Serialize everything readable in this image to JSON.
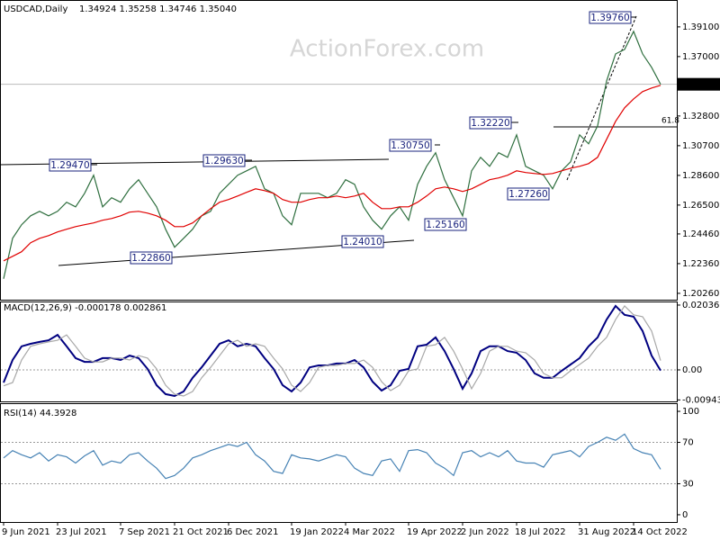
{
  "chart_data": [
    {
      "type": "line",
      "title": "USDCAD,Daily",
      "ohlc": "1.34924 1.35258 1.34746 1.35040",
      "watermark": "ActionForex.com",
      "categories": [
        "9 Jun 2021",
        null,
        null,
        null,
        null,
        null,
        "23 Jul 2021",
        null,
        null,
        null,
        null,
        null,
        null,
        "7 Sep 2021",
        null,
        null,
        null,
        null,
        null,
        "21 Oct 2021",
        null,
        null,
        null,
        null,
        null,
        "6 Dec 2021",
        null,
        null,
        null,
        null,
        null,
        null,
        "19 Jan 2022",
        null,
        null,
        null,
        null,
        null,
        "4 Mar 2022",
        null,
        null,
        null,
        null,
        null,
        null,
        "19 Apr 2022",
        null,
        null,
        null,
        null,
        null,
        "2 Jun 2022",
        null,
        null,
        null,
        null,
        null,
        "18 Jul 2022",
        null,
        null,
        null,
        null,
        null,
        null,
        "31 Aug 2022",
        null,
        null,
        null,
        null,
        null,
        "14 Oct 2022",
        null,
        null,
        null
      ],
      "series": [
        {
          "color": "#2f6f3f",
          "values": [
            1.2129,
            1.2415,
            1.2511,
            1.2574,
            1.2606,
            1.2574,
            1.2606,
            1.267,
            1.2638,
            1.2733,
            1.2861,
            1.2638,
            1.2702,
            1.267,
            1.2765,
            1.2829,
            1.2733,
            1.2638,
            1.2479,
            1.2352,
            1.2415,
            1.2479,
            1.2574,
            1.2606,
            1.2733,
            1.2797,
            1.2861,
            1.2892,
            1.2924,
            1.2765,
            1.2733,
            1.2574,
            1.2511,
            1.2733,
            1.2733,
            1.2733,
            1.2702,
            1.2733,
            1.2829,
            1.2797,
            1.2638,
            1.2543,
            1.2479,
            1.2574,
            1.2638,
            1.2543,
            1.2797,
            1.2924,
            1.302,
            1.2829,
            1.2702,
            1.2574,
            1.2892,
            1.2988,
            1.2924,
            1.302,
            1.2988,
            1.3147,
            1.2924,
            1.2892,
            1.2861,
            1.2765,
            1.2892,
            1.2956,
            1.3147,
            1.3083,
            1.321,
            1.3528,
            1.3719,
            1.3751,
            1.3878,
            1.3719,
            1.3624,
            1.3504
          ]
        },
        {
          "color": "#e00000",
          "values": [
            1.2256,
            1.2288,
            1.232,
            1.2384,
            1.2415,
            1.2434,
            1.246,
            1.2479,
            1.2498,
            1.2511,
            1.2524,
            1.2543,
            1.2555,
            1.2574,
            1.26,
            1.2606,
            1.2593,
            1.2574,
            1.2543,
            1.2498,
            1.2498,
            1.2524,
            1.2574,
            1.2625,
            1.267,
            1.2689,
            1.2714,
            1.274,
            1.2765,
            1.2752,
            1.2733,
            1.2689,
            1.267,
            1.267,
            1.2689,
            1.2702,
            1.2702,
            1.2714,
            1.2702,
            1.2714,
            1.2733,
            1.267,
            1.2625,
            1.2625,
            1.2638,
            1.2638,
            1.267,
            1.2714,
            1.2765,
            1.2778,
            1.2765,
            1.2746,
            1.2765,
            1.2797,
            1.2829,
            1.2842,
            1.2861,
            1.2892,
            1.288,
            1.2873,
            1.2867,
            1.2873,
            1.2892,
            1.2911,
            1.2924,
            1.2943,
            1.2988,
            1.3115,
            1.3242,
            1.3338,
            1.3401,
            1.3452,
            1.3478,
            1.3497
          ]
        }
      ],
      "ylim": [
        1.1981,
        1.4081
      ],
      "yticks": [
        {
          "value": 1.391,
          "label": "1.39100"
        },
        {
          "value": 1.37,
          "label": "1.37000"
        },
        {
          "value": 1.328,
          "label": "1.32800"
        },
        {
          "value": 1.307,
          "label": "1.30700"
        },
        {
          "value": 1.286,
          "label": "1.28600"
        },
        {
          "value": 1.265,
          "label": "1.26500"
        },
        {
          "value": 1.2446,
          "label": "1.24460"
        },
        {
          "value": 1.2236,
          "label": "1.22360"
        },
        {
          "value": 1.2026,
          "label": "1.20260"
        }
      ],
      "last_price": {
        "value": 1.3504,
        "label": "1.35040"
      },
      "annotations": [
        "1.29470",
        "1.29630",
        "1.30750",
        "1.32220",
        "1.39760",
        "1.22860",
        "1.24010",
        "1.25160",
        "1.27260"
      ],
      "fib_label": "61.8"
    },
    {
      "type": "line",
      "title": "MACD(12,26,9) -0.000178 0.002861",
      "series": [
        {
          "color": "#000080",
          "values": [
            -0.004,
            0.0031,
            0.0074,
            0.0082,
            0.0088,
            0.0093,
            0.011,
            0.0074,
            0.0037,
            0.0025,
            0.0025,
            0.0037,
            0.0037,
            0.0031,
            0.0045,
            0.0037,
            0.0003,
            -0.0048,
            -0.0076,
            -0.0082,
            -0.0068,
            -0.0025,
            0.0008,
            0.0045,
            0.0082,
            0.0093,
            0.0074,
            0.0082,
            0.0074,
            0.0037,
            0.0003,
            -0.0048,
            -0.0068,
            -0.004,
            0.0008,
            0.0014,
            0.0014,
            0.002,
            0.002,
            0.0031,
            0.0008,
            -0.0037,
            -0.0065,
            -0.0048,
            -0.0003,
            0.0003,
            0.0074,
            0.0079,
            0.0102,
            0.0059,
            0.0003,
            -0.0059,
            -0.0011,
            0.0059,
            0.0074,
            0.0074,
            0.0059,
            0.0054,
            0.0031,
            -0.0011,
            -0.0025,
            -0.0025,
            -0.0003,
            0.0017,
            0.0037,
            0.0074,
            0.0102,
            0.0158,
            0.0201,
            0.0173,
            0.0167,
            0.0122,
            0.0045,
            -0.0002
          ]
        },
        {
          "color": "#a8a8a8",
          "values": [
            -0.005,
            -0.004,
            0.0031,
            0.0074,
            0.0082,
            0.0088,
            0.0093,
            0.011,
            0.0074,
            0.0037,
            0.0025,
            0.0025,
            0.0037,
            0.0037,
            0.0031,
            0.0045,
            0.0037,
            0.0003,
            -0.0048,
            -0.0076,
            -0.0082,
            -0.0068,
            -0.0025,
            0.0008,
            0.0045,
            0.0082,
            0.0093,
            0.0074,
            0.0082,
            0.0074,
            0.0037,
            0.0003,
            -0.0048,
            -0.0068,
            -0.004,
            0.0008,
            0.0014,
            0.0014,
            0.002,
            0.002,
            0.0031,
            0.0008,
            -0.0037,
            -0.0065,
            -0.0048,
            -0.0003,
            0.0003,
            0.0074,
            0.0079,
            0.0102,
            0.0059,
            0.0003,
            -0.0059,
            -0.0011,
            0.0059,
            0.0074,
            0.0074,
            0.0059,
            0.0054,
            0.0031,
            -0.0011,
            -0.0025,
            -0.0025,
            -0.0003,
            0.0017,
            0.0037,
            0.0074,
            0.0102,
            0.0158,
            0.0201,
            0.0173,
            0.0167,
            0.0122,
            0.0029
          ]
        }
      ],
      "ylim": [
        -0.0099,
        0.0212
      ],
      "yticks": [
        0.02036,
        {
          "value": 0,
          "label": "0.00"
        },
        -0.009438
      ],
      "level_lines": [
        0
      ]
    },
    {
      "type": "line",
      "title": "RSI(14) 44.3928",
      "series": [
        {
          "color": "#4682b4",
          "values": [
            55,
            62,
            58,
            55,
            60,
            52,
            58,
            56,
            50,
            57,
            62,
            48,
            52,
            50,
            58,
            60,
            52,
            45,
            35,
            38,
            45,
            55,
            58,
            62,
            65,
            68,
            66,
            70,
            58,
            52,
            42,
            40,
            58,
            55,
            54,
            52,
            55,
            58,
            56,
            45,
            40,
            38,
            52,
            54,
            42,
            62,
            63,
            60,
            50,
            45,
            38,
            60,
            62,
            56,
            60,
            56,
            62,
            52,
            50,
            50,
            46,
            58,
            60,
            62,
            56,
            66,
            70,
            75,
            72,
            78,
            64,
            60,
            58,
            44
          ]
        }
      ],
      "ylim": [
        -7,
        107
      ],
      "yticks": [
        100,
        70,
        30,
        0
      ],
      "level_lines": [
        70,
        30
      ]
    }
  ]
}
